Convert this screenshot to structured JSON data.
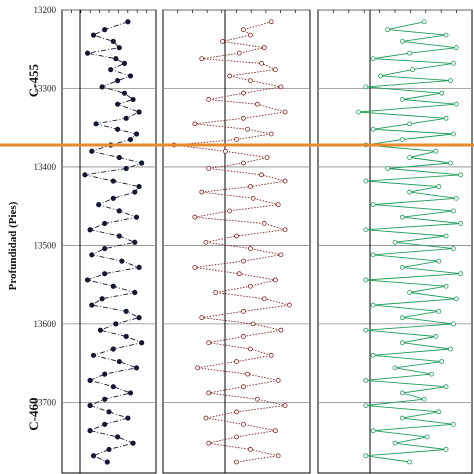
{
  "chart_data": {
    "type": "line",
    "title": "",
    "ylabel": "Profundidad  (Pies)",
    "ylim": [
      13200,
      13790
    ],
    "yticks": [
      13200,
      13300,
      13400,
      13500,
      13600,
      13700
    ],
    "ytick_labels": [
      "13200",
      "13300",
      "13400",
      "13500",
      "13600",
      "13700"
    ],
    "y_inverted": true,
    "grid": true,
    "marker_depth": 13372,
    "marker_color": "#e8892b",
    "well_labels": [
      {
        "text": "C-455",
        "depth": 13290
      },
      {
        "text": "C-460",
        "depth": 13715
      }
    ],
    "series": [
      {
        "color": "#151833",
        "marker": "filled-circle",
        "line": "dash-dot",
        "x": [
          0.72,
          0.45,
          0.32,
          0.55,
          0.62,
          0.25,
          0.58,
          0.68,
          0.52,
          0.75,
          0.6,
          0.42,
          0.68,
          0.78,
          0.6,
          0.85,
          0.7,
          0.35,
          0.6,
          0.82,
          0.75,
          0.52,
          0.3,
          0.62,
          0.88,
          0.7,
          0.22,
          0.55,
          0.85,
          0.8,
          0.55,
          0.38,
          0.62,
          0.82,
          0.45,
          0.28,
          0.62,
          0.8,
          0.45,
          0.3,
          0.65,
          0.85,
          0.45,
          0.25,
          0.55,
          0.8,
          0.42,
          0.3,
          0.7,
          0.85,
          0.58,
          0.4,
          0.7,
          0.88,
          0.55,
          0.32,
          0.62,
          0.82,
          0.45,
          0.28,
          0.55,
          0.75,
          0.45,
          0.28,
          0.5,
          0.72,
          0.45,
          0.28,
          0.6,
          0.78,
          0.5,
          0.32,
          0.48
        ],
        "y": [
          13215,
          13225,
          13232,
          13240,
          13248,
          13255,
          13262,
          13268,
          13276,
          13284,
          13290,
          13298,
          13306,
          13314,
          13320,
          13330,
          13338,
          13345,
          13352,
          13358,
          13365,
          13372,
          13380,
          13388,
          13395,
          13402,
          13410,
          13418,
          13425,
          13432,
          13440,
          13448,
          13456,
          13464,
          13472,
          13480,
          13488,
          13496,
          13504,
          13512,
          13520,
          13528,
          13536,
          13544,
          13552,
          13560,
          13568,
          13576,
          13584,
          13592,
          13600,
          13608,
          13616,
          13624,
          13632,
          13640,
          13648,
          13656,
          13664,
          13672,
          13680,
          13688,
          13696,
          13704,
          13712,
          13720,
          13728,
          13736,
          13744,
          13752,
          13760,
          13768,
          13776
        ]
      },
      {
        "color": "#8b1f1f",
        "marker": "open-circle",
        "line": "dotted",
        "x": [
          0.75,
          0.55,
          0.6,
          0.4,
          0.7,
          0.52,
          0.25,
          0.68,
          0.78,
          0.45,
          0.6,
          0.82,
          0.55,
          0.3,
          0.65,
          0.85,
          0.55,
          0.2,
          0.58,
          0.75,
          0.5,
          0.05,
          0.42,
          0.72,
          0.55,
          0.3,
          0.68,
          0.85,
          0.6,
          0.25,
          0.62,
          0.8,
          0.45,
          0.2,
          0.7,
          0.85,
          0.5,
          0.28,
          0.6,
          0.82,
          0.55,
          0.2,
          0.52,
          0.78,
          0.6,
          0.35,
          0.7,
          0.88,
          0.55,
          0.25,
          0.62,
          0.82,
          0.55,
          0.3,
          0.6,
          0.75,
          0.5,
          0.22,
          0.58,
          0.8,
          0.55,
          0.3,
          0.65,
          0.85,
          0.5,
          0.28,
          0.55,
          0.78,
          0.5,
          0.3,
          0.6,
          0.8,
          0.5
        ],
        "y": [
          13215,
          13225,
          13232,
          13240,
          13248,
          13255,
          13262,
          13268,
          13276,
          13284,
          13290,
          13298,
          13306,
          13314,
          13320,
          13330,
          13338,
          13345,
          13352,
          13358,
          13365,
          13372,
          13380,
          13388,
          13395,
          13402,
          13410,
          13418,
          13425,
          13432,
          13440,
          13448,
          13456,
          13464,
          13472,
          13480,
          13488,
          13496,
          13504,
          13512,
          13520,
          13528,
          13536,
          13544,
          13552,
          13560,
          13568,
          13576,
          13584,
          13592,
          13600,
          13608,
          13616,
          13624,
          13632,
          13640,
          13648,
          13656,
          13664,
          13672,
          13680,
          13688,
          13696,
          13704,
          13712,
          13720,
          13728,
          13736,
          13744,
          13752,
          13760,
          13768,
          13776
        ]
      },
      {
        "color": "#1f9e5a",
        "marker": "open-circle",
        "line": "solid",
        "x": [
          0.7,
          0.45,
          0.85,
          0.55,
          0.92,
          0.6,
          0.35,
          0.9,
          0.62,
          0.4,
          0.88,
          0.3,
          0.82,
          0.55,
          0.92,
          0.25,
          0.85,
          0.6,
          0.35,
          0.9,
          0.55,
          0.3,
          0.78,
          0.6,
          0.88,
          0.45,
          0.95,
          0.3,
          0.8,
          0.6,
          0.92,
          0.35,
          0.9,
          0.55,
          0.95,
          0.3,
          0.85,
          0.5,
          0.9,
          0.35,
          0.8,
          0.55,
          0.95,
          0.3,
          0.85,
          0.6,
          0.92,
          0.35,
          0.8,
          0.55,
          0.9,
          0.3,
          0.78,
          0.55,
          0.88,
          0.35,
          0.82,
          0.5,
          0.75,
          0.3,
          0.85,
          0.55,
          0.7,
          0.3,
          0.8,
          0.55,
          0.9,
          0.35,
          0.72,
          0.5,
          0.85,
          0.3,
          0.6
        ],
        "y": [
          13215,
          13225,
          13232,
          13240,
          13248,
          13255,
          13262,
          13268,
          13276,
          13284,
          13290,
          13298,
          13306,
          13314,
          13320,
          13330,
          13338,
          13345,
          13352,
          13358,
          13365,
          13372,
          13380,
          13388,
          13395,
          13402,
          13410,
          13418,
          13425,
          13432,
          13440,
          13448,
          13456,
          13464,
          13472,
          13480,
          13488,
          13496,
          13504,
          13512,
          13520,
          13528,
          13536,
          13544,
          13552,
          13560,
          13568,
          13576,
          13584,
          13592,
          13600,
          13608,
          13616,
          13624,
          13632,
          13640,
          13648,
          13656,
          13664,
          13672,
          13680,
          13688,
          13696,
          13704,
          13712,
          13720,
          13728,
          13736,
          13744,
          13752,
          13760,
          13768,
          13776
        ]
      }
    ]
  }
}
